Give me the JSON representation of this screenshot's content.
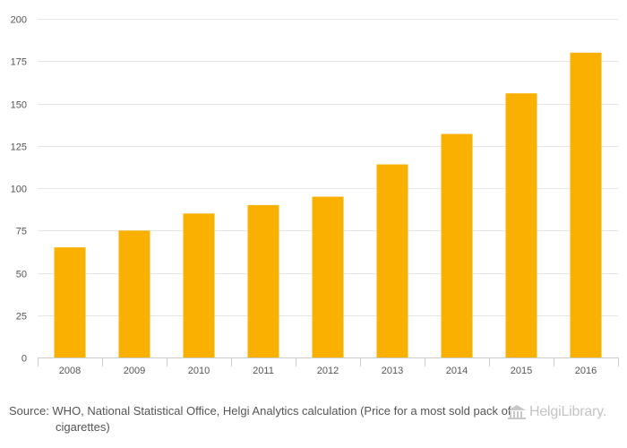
{
  "chart_data": {
    "type": "bar",
    "title": "",
    "xlabel": "",
    "ylabel": "",
    "categories": [
      "2008",
      "2009",
      "2010",
      "2011",
      "2012",
      "2013",
      "2014",
      "2015",
      "2016"
    ],
    "values": [
      65,
      75,
      85,
      90,
      95,
      114,
      132,
      156,
      180
    ],
    "ylim": [
      0,
      200
    ],
    "yticks": [
      0,
      25,
      50,
      75,
      100,
      125,
      150,
      175,
      200
    ],
    "grid": true,
    "bar_color": "#f9b000"
  },
  "footer": {
    "source": "Source: WHO, National Statistical Office, Helgi Analytics calculation (Price for a most sold pack of cigarettes)",
    "logo_text": "HelgiLibrary."
  }
}
